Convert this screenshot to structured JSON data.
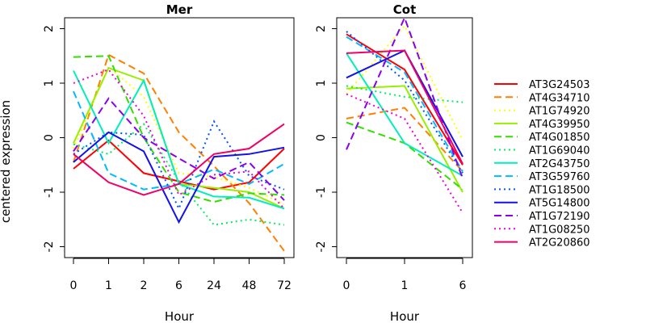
{
  "chart_data": {
    "type": "line",
    "ylabel": "centered expression",
    "ylim": [
      -2.2,
      2.2
    ],
    "yticks": [
      -2,
      -1,
      0,
      1,
      2
    ],
    "legend_position": "right",
    "grid": false,
    "series": [
      {
        "name": "AT3G24503",
        "color": "#ff0000",
        "dash": "solid"
      },
      {
        "name": "AT4G34710",
        "color": "#ff7f00",
        "dash": "dashed"
      },
      {
        "name": "AT1G74920",
        "color": "#ffff00",
        "dash": "dotted"
      },
      {
        "name": "AT4G39950",
        "color": "#99ee00",
        "dash": "solid"
      },
      {
        "name": "AT4G01850",
        "color": "#33dd00",
        "dash": "dashed"
      },
      {
        "name": "AT1G69040",
        "color": "#00ee66",
        "dash": "dotted"
      },
      {
        "name": "AT2G43750",
        "color": "#00eebb",
        "dash": "solid"
      },
      {
        "name": "AT3G59760",
        "color": "#00bbff",
        "dash": "dashed"
      },
      {
        "name": "AT1G18500",
        "color": "#0055ff",
        "dash": "dotted"
      },
      {
        "name": "AT5G14800",
        "color": "#1111ee",
        "dash": "solid"
      },
      {
        "name": "AT1G72190",
        "color": "#8800ee",
        "dash": "dashed"
      },
      {
        "name": "AT1G08250",
        "color": "#ee00dd",
        "dash": "dotted"
      },
      {
        "name": "AT2G20860",
        "color": "#ee0066",
        "dash": "solid"
      }
    ],
    "panels": [
      {
        "title": "Mer",
        "xlabel": "Hour",
        "categories": [
          "0",
          "1",
          "2",
          "6",
          "24",
          "48",
          "72"
        ],
        "values": [
          [
            -0.57,
            -0.05,
            -0.65,
            -0.8,
            -0.95,
            -0.82,
            -0.2
          ],
          [
            -0.45,
            1.52,
            1.18,
            0.1,
            -0.52,
            -1.2,
            -2.08
          ],
          [
            -0.2,
            1.3,
            0.75,
            -0.65,
            -0.72,
            -0.92,
            -1.22
          ],
          [
            -0.1,
            1.28,
            1.05,
            -0.85,
            -0.92,
            -1.0,
            -1.3
          ],
          [
            1.48,
            1.5,
            0.0,
            -1.0,
            -1.18,
            -1.02,
            -1.05
          ],
          [
            -0.12,
            -0.3,
            0.25,
            -0.8,
            -1.6,
            -1.5,
            -1.6
          ],
          [
            1.23,
            -0.1,
            1.05,
            -0.85,
            -1.08,
            -1.1,
            -1.3
          ],
          [
            0.85,
            -0.65,
            -0.95,
            -0.85,
            -0.58,
            -0.85,
            -0.48
          ],
          [
            -0.3,
            0.1,
            0.05,
            -1.3,
            0.3,
            -0.7,
            -0.95
          ],
          [
            -0.45,
            0.1,
            -0.25,
            -1.55,
            -0.35,
            -0.3,
            -0.18
          ],
          [
            -0.25,
            0.72,
            0.0,
            -0.38,
            -0.75,
            -0.45,
            -1.15
          ],
          [
            1.0,
            1.25,
            0.4,
            -1.05,
            -0.68,
            -0.62,
            -1.3
          ],
          [
            -0.3,
            -0.82,
            -1.05,
            -0.85,
            -0.3,
            -0.2,
            0.25
          ]
        ]
      },
      {
        "title": "Cot",
        "xlabel": "Hour",
        "categories": [
          "0",
          "1",
          "6"
        ],
        "values": [
          [
            1.9,
            1.25,
            -0.5
          ],
          [
            0.35,
            0.55,
            -0.62
          ],
          [
            0.8,
            2.05,
            -0.05
          ],
          [
            0.9,
            0.95,
            -1.0
          ],
          [
            0.28,
            -0.1,
            -0.95
          ],
          [
            0.95,
            0.75,
            0.65
          ],
          [
            1.55,
            -0.1,
            -0.7
          ],
          [
            1.85,
            1.2,
            -0.62
          ],
          [
            1.95,
            1.05,
            -0.65
          ],
          [
            1.1,
            1.6,
            -0.35
          ],
          [
            -0.22,
            2.2,
            -0.75
          ],
          [
            0.8,
            0.35,
            -1.38
          ],
          [
            1.55,
            1.6,
            -0.48
          ]
        ]
      }
    ]
  }
}
